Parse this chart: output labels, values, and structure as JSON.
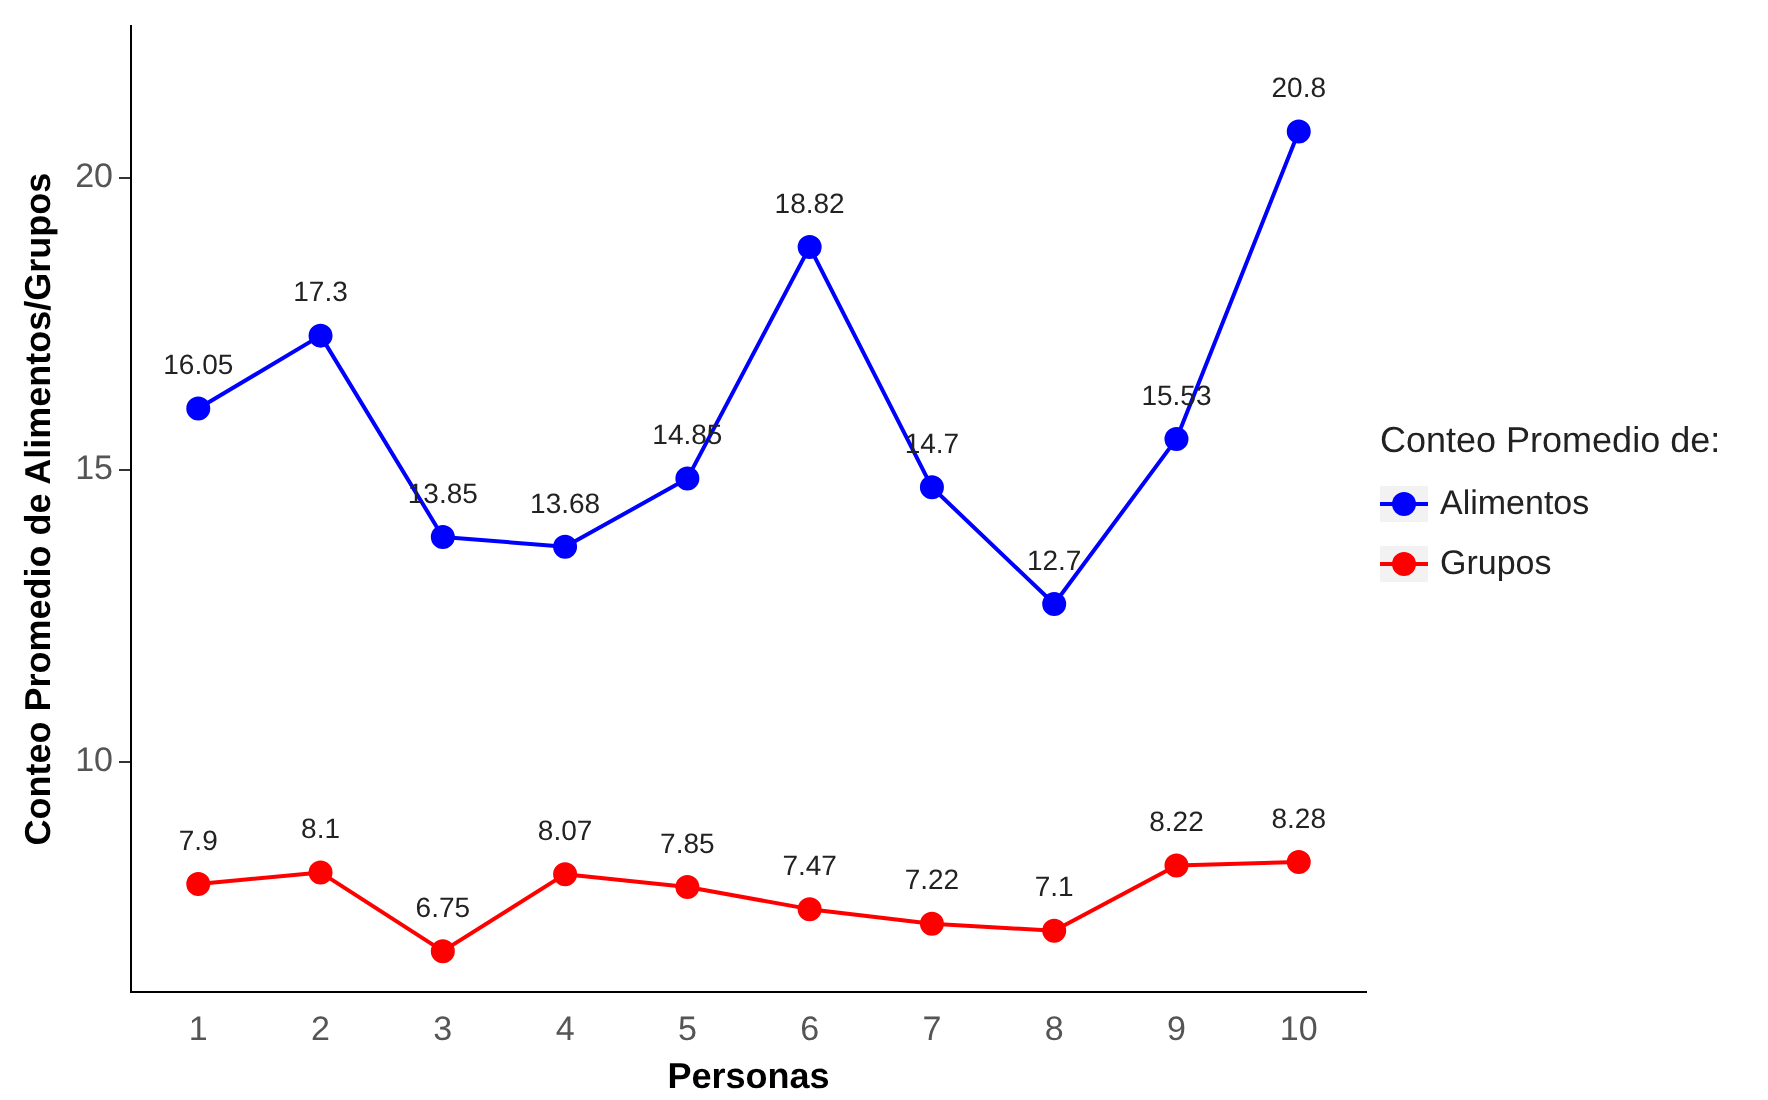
{
  "chart_data": {
    "type": "line",
    "xlabel": "Personas",
    "ylabel": "Conteo Promedio de Alimentos/Grupos",
    "legend_title": "Conteo Promedio de:",
    "x": [
      1,
      2,
      3,
      4,
      5,
      6,
      7,
      8,
      9,
      10
    ],
    "series": [
      {
        "name": "Alimentos",
        "color": "#0000ff",
        "values": [
          16.05,
          17.3,
          13.85,
          13.68,
          14.85,
          18.82,
          14.7,
          12.7,
          15.53,
          20.8
        ]
      },
      {
        "name": "Grupos",
        "color": "#ff0000",
        "values": [
          7.9,
          8.1,
          6.75,
          8.07,
          7.85,
          7.47,
          7.22,
          7.1,
          8.22,
          8.28
        ]
      }
    ],
    "xlim": [
      0.45,
      10.55
    ],
    "xticks": [
      1,
      2,
      3,
      4,
      5,
      6,
      7,
      8,
      9,
      10
    ],
    "ylim": [
      6.05,
      22.6
    ],
    "yticks": [
      10,
      15,
      20
    ],
    "grid": false,
    "legend": "right",
    "marker": "circle",
    "line_style": "solid",
    "data_labels": true
  }
}
